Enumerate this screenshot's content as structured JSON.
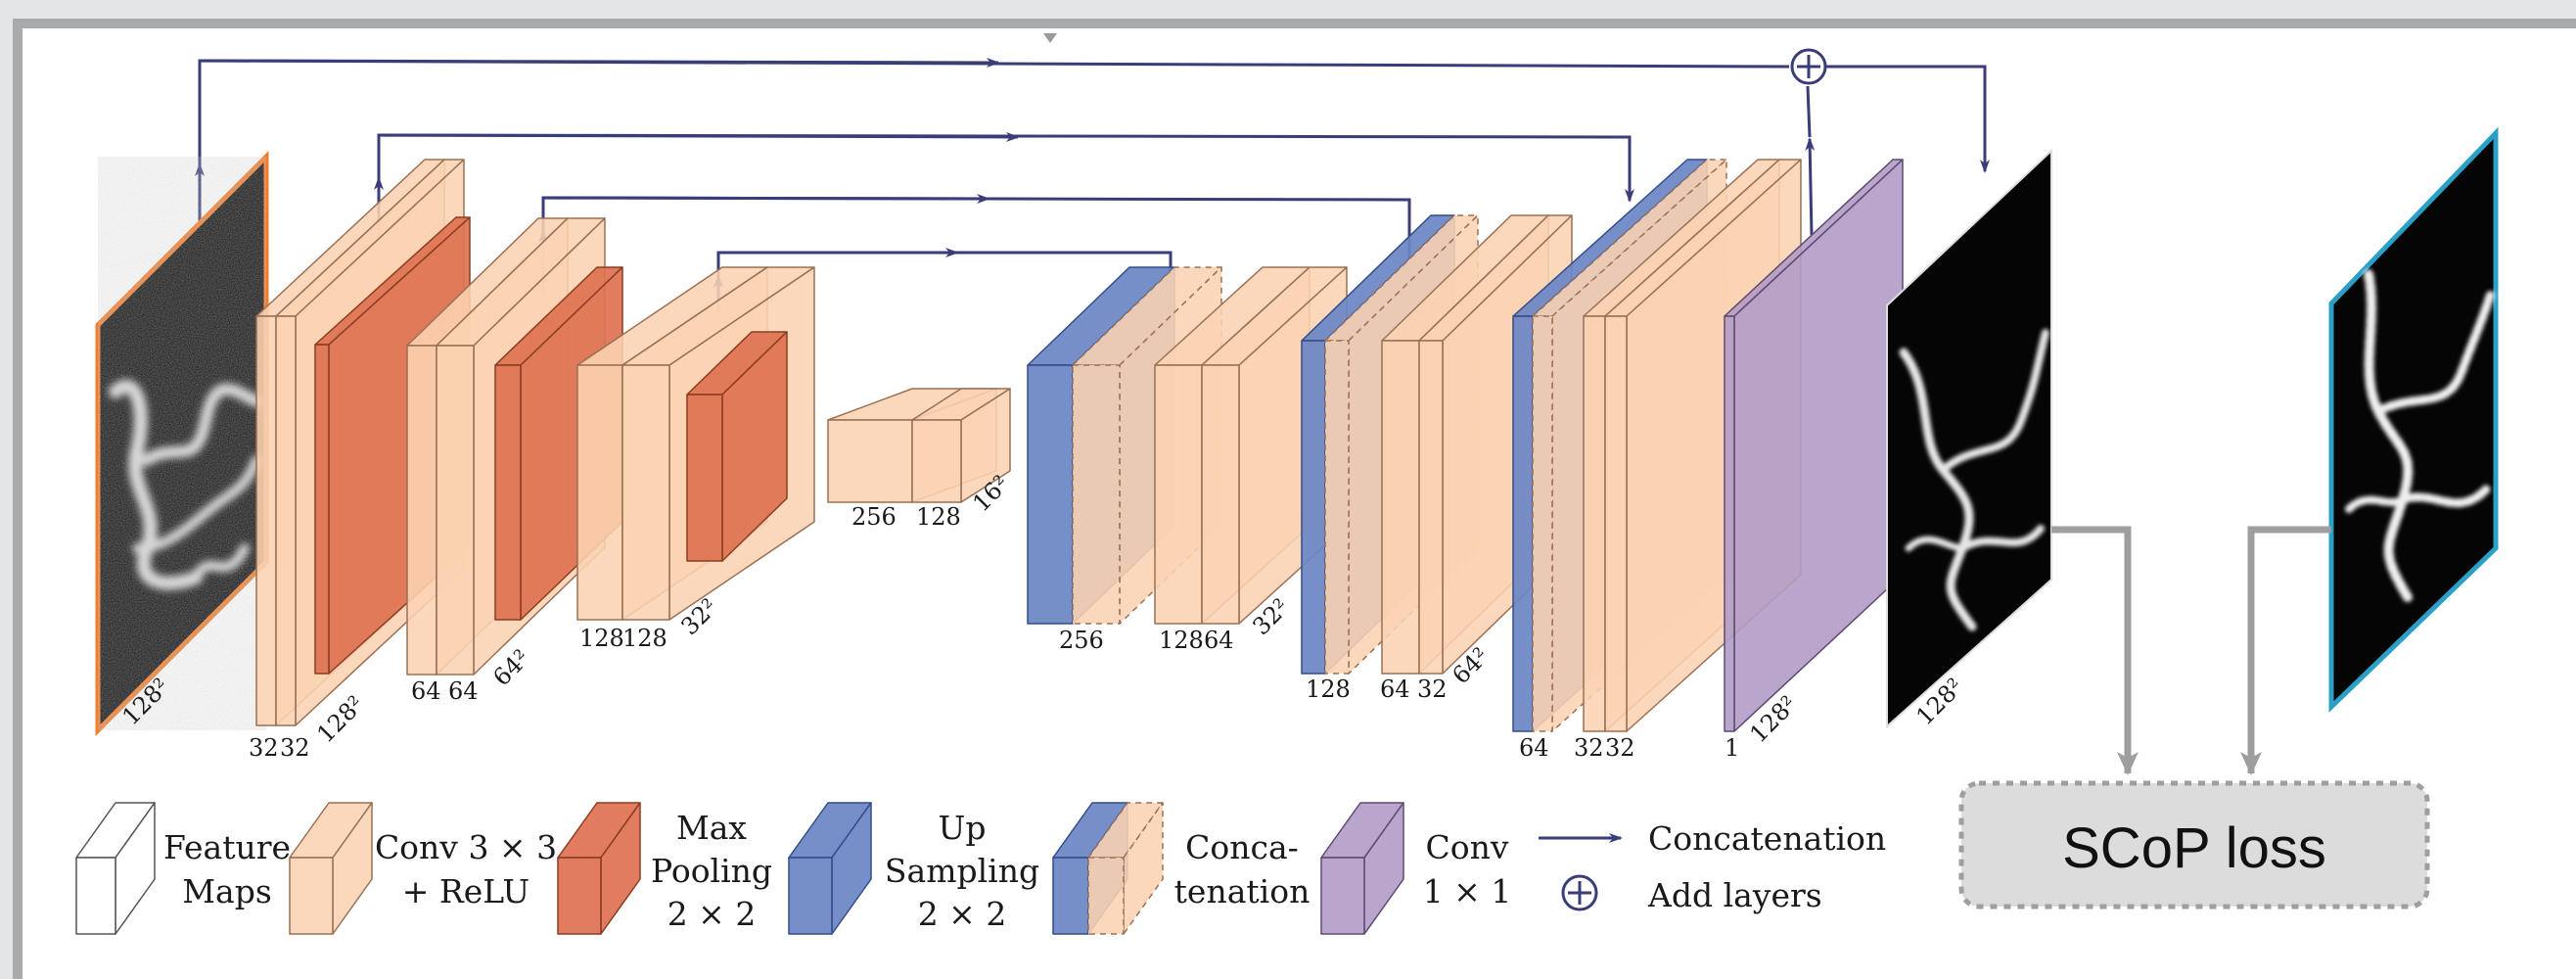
{
  "dim_labels": {
    "input_size": "128²",
    "enc1_ch_a": "32",
    "enc1_ch_b": "32",
    "enc1_size": "128²",
    "enc2_ch_a": "64",
    "enc2_ch_b": "64",
    "enc2_size": "64²",
    "enc3_ch_a": "128",
    "enc3_ch_b": "128",
    "enc3_size": "32²",
    "bott_ch_a": "256",
    "bott_ch_b": "128",
    "bott_size": "16²",
    "dec3_concat": "256",
    "dec3_ch_a": "128",
    "dec3_ch_b": "64",
    "dec3_size": "32²",
    "dec2_concat": "128",
    "dec2_ch_a": "64",
    "dec2_ch_b": "32",
    "dec2_size": "64²",
    "dec1_concat": "64",
    "dec1_ch_a": "32",
    "dec1_ch_b": "32",
    "conv1_ch": "1",
    "conv1_size": "128²",
    "output_size": "128²"
  },
  "loss_box": {
    "label": "SCoP loss"
  },
  "legend": {
    "feature_maps": [
      "Feature",
      "Maps"
    ],
    "conv": [
      "Conv 3 × 3",
      "+ ReLU"
    ],
    "maxpool": [
      "Max",
      "Pooling",
      "2 × 2"
    ],
    "upsample": [
      "Up",
      "Sampling",
      "2 × 2"
    ],
    "concat_block": [
      "Conca-",
      "tenation"
    ],
    "conv1x1": [
      "Conv",
      "1 × 1"
    ],
    "concat_arrow": "Concatenation",
    "add_layers": "Add layers"
  },
  "colors": {
    "conv": "#fbd3b2",
    "conv_edge": "#9a7055",
    "pool": "#de7250",
    "pool_edge": "#8a3d22",
    "upsample": "#6a86c4",
    "upsample_edge": "#324d8a",
    "conv1x1": "#b39cc6",
    "conv1x1_edge": "#5e4a70",
    "arrow": "#3a3d7a",
    "input_frame": "#f07d2c",
    "target_frame": "#2aa0c8",
    "loss_fill": "#dcdcdc",
    "loss_line": "#9e9e9e"
  }
}
